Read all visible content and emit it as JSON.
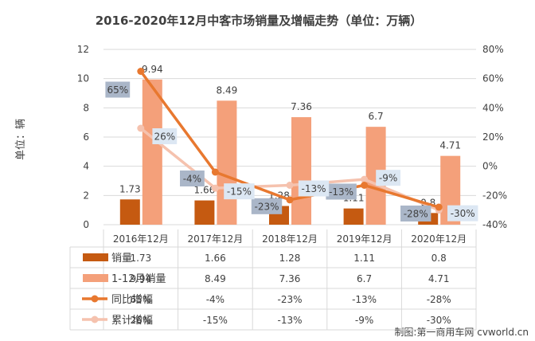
{
  "chart_data": {
    "type": "bar",
    "title": "2016-2020年12月中客市场销量及增幅走势（单位：万辆）",
    "ylabel": "单位：辆",
    "credit": "制图:第一商用车网 cvworld.cn",
    "categories": [
      "2016年12月",
      "2017年12月",
      "2018年12月",
      "2019年12月",
      "2020年12月"
    ],
    "ylim": [
      0,
      12
    ],
    "yticks": [
      0,
      2,
      4,
      6,
      8,
      10,
      12
    ],
    "y2lim": [
      -40,
      80
    ],
    "y2ticks": [
      "80%",
      "60%",
      "40%",
      "20%",
      "0%",
      "-20%",
      "-40%"
    ],
    "y2tick_values": [
      80,
      60,
      40,
      20,
      0,
      -20,
      -40
    ],
    "grid": true,
    "series": [
      {
        "name": "销量",
        "type": "bar",
        "axis": "left",
        "color": "#C55A11",
        "values": [
          1.73,
          1.66,
          1.28,
          1.11,
          0.8
        ],
        "labels": [
          "1.73",
          "1.66",
          "1.28",
          "1.11",
          "0.8"
        ]
      },
      {
        "name": "1-12月销量",
        "type": "bar",
        "axis": "left",
        "color": "#F4A07A",
        "values": [
          9.94,
          8.49,
          7.36,
          6.7,
          4.71
        ],
        "labels": [
          "9.94",
          "8.49",
          "7.36",
          "6.7",
          "4.71"
        ]
      },
      {
        "name": "同比增幅",
        "type": "line",
        "axis": "right",
        "color": "#E8782F",
        "values": [
          65,
          -4,
          -23,
          -13,
          -28
        ],
        "labels": [
          "65%",
          "-4%",
          "-23%",
          "-13%",
          "-28%"
        ]
      },
      {
        "name": "累计增幅",
        "type": "line",
        "axis": "right",
        "color": "#F5C2AE",
        "values": [
          26,
          -15,
          -13,
          -9,
          -30
        ],
        "labels": [
          "26%",
          "-15%",
          "-13%",
          "-9%",
          "-30%"
        ]
      }
    ],
    "table": {
      "rows": [
        {
          "series": "销量",
          "marker": "bar",
          "color": "#C55A11",
          "cells": [
            "1.73",
            "1.66",
            "1.28",
            "1.11",
            "0.8"
          ]
        },
        {
          "series": "1-12月销量",
          "marker": "bar",
          "color": "#F4A07A",
          "cells": [
            "9.94",
            "8.49",
            "7.36",
            "6.7",
            "4.71"
          ]
        },
        {
          "series": "同比增幅",
          "marker": "line",
          "color": "#E8782F",
          "cells": [
            "65%",
            "-4%",
            "-23%",
            "-13%",
            "-28%"
          ]
        },
        {
          "series": "累计增幅",
          "marker": "line",
          "color": "#F5C2AE",
          "cells": [
            "26%",
            "-15%",
            "-13%",
            "-9%",
            "-30%"
          ]
        }
      ]
    }
  }
}
